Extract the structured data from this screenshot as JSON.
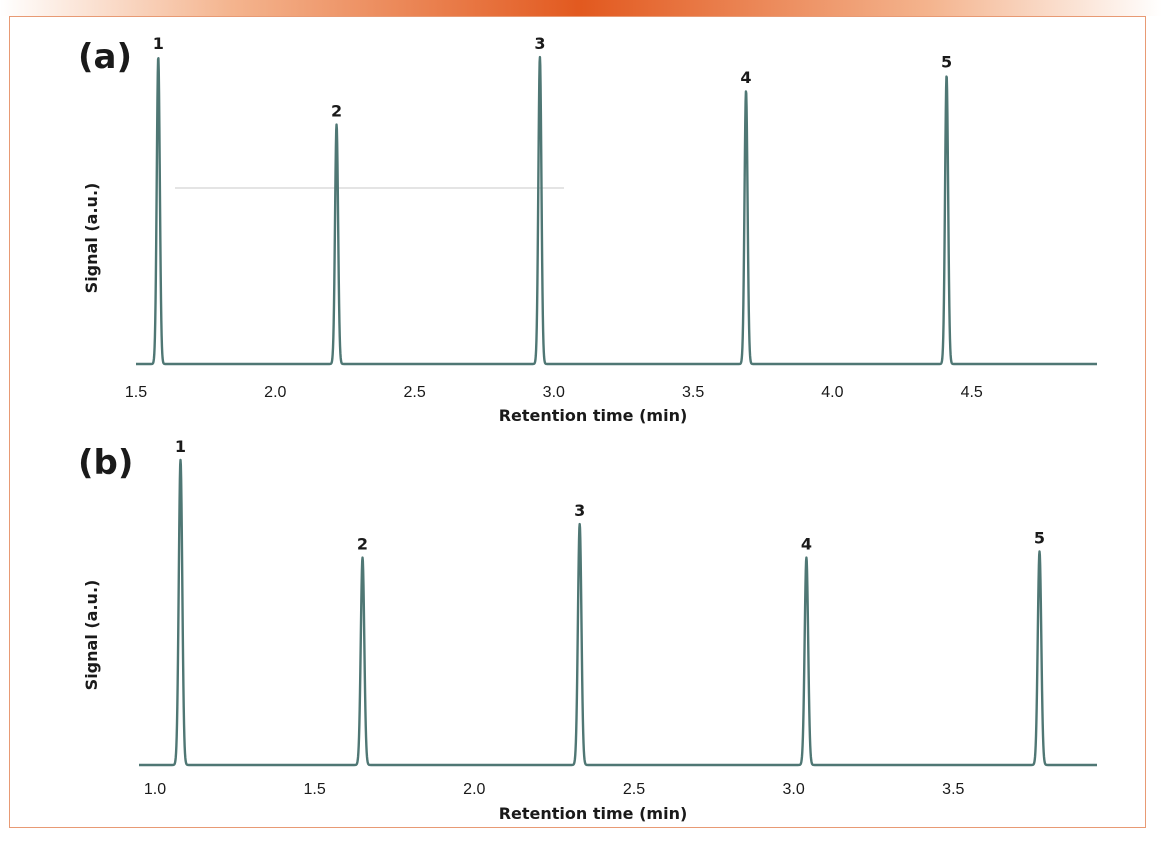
{
  "chart_data": [
    {
      "type": "line",
      "panel_label": "(a)",
      "xlabel": "Retention time (min)",
      "ylabel": "Signal (a.u.)",
      "xlim": [
        1.5,
        4.95
      ],
      "ylim": [
        0,
        1
      ],
      "xticks": [
        "1.5",
        "2.0",
        "2.5",
        "3.0",
        "3.5",
        "4.0",
        "4.5"
      ],
      "grid": false,
      "peaks": [
        {
          "label": "1",
          "rt": 1.58,
          "height": 1.0
        },
        {
          "label": "2",
          "rt": 2.22,
          "height": 0.78
        },
        {
          "label": "3",
          "rt": 2.95,
          "height": 1.0
        },
        {
          "label": "4",
          "rt": 3.69,
          "height": 0.89
        },
        {
          "label": "5",
          "rt": 4.41,
          "height": 0.94
        }
      ]
    },
    {
      "type": "line",
      "panel_label": "(b)",
      "xlabel": "Retention time (min)",
      "ylabel": "Signal (a.u.)",
      "xlim": [
        0.95,
        3.95
      ],
      "ylim": [
        0,
        1
      ],
      "xticks": [
        "1.0",
        "1.5",
        "2.0",
        "2.5",
        "3.0",
        "3.5"
      ],
      "grid": false,
      "peaks": [
        {
          "label": "1",
          "rt": 1.08,
          "height": 1.0
        },
        {
          "label": "2",
          "rt": 1.65,
          "height": 0.68
        },
        {
          "label": "3",
          "rt": 2.33,
          "height": 0.79
        },
        {
          "label": "4",
          "rt": 3.04,
          "height": 0.68
        },
        {
          "label": "5",
          "rt": 3.77,
          "height": 0.7
        }
      ]
    }
  ],
  "colors": {
    "trace": "#4f7774",
    "accent": "#e2591f",
    "frame": "#e89a74"
  }
}
